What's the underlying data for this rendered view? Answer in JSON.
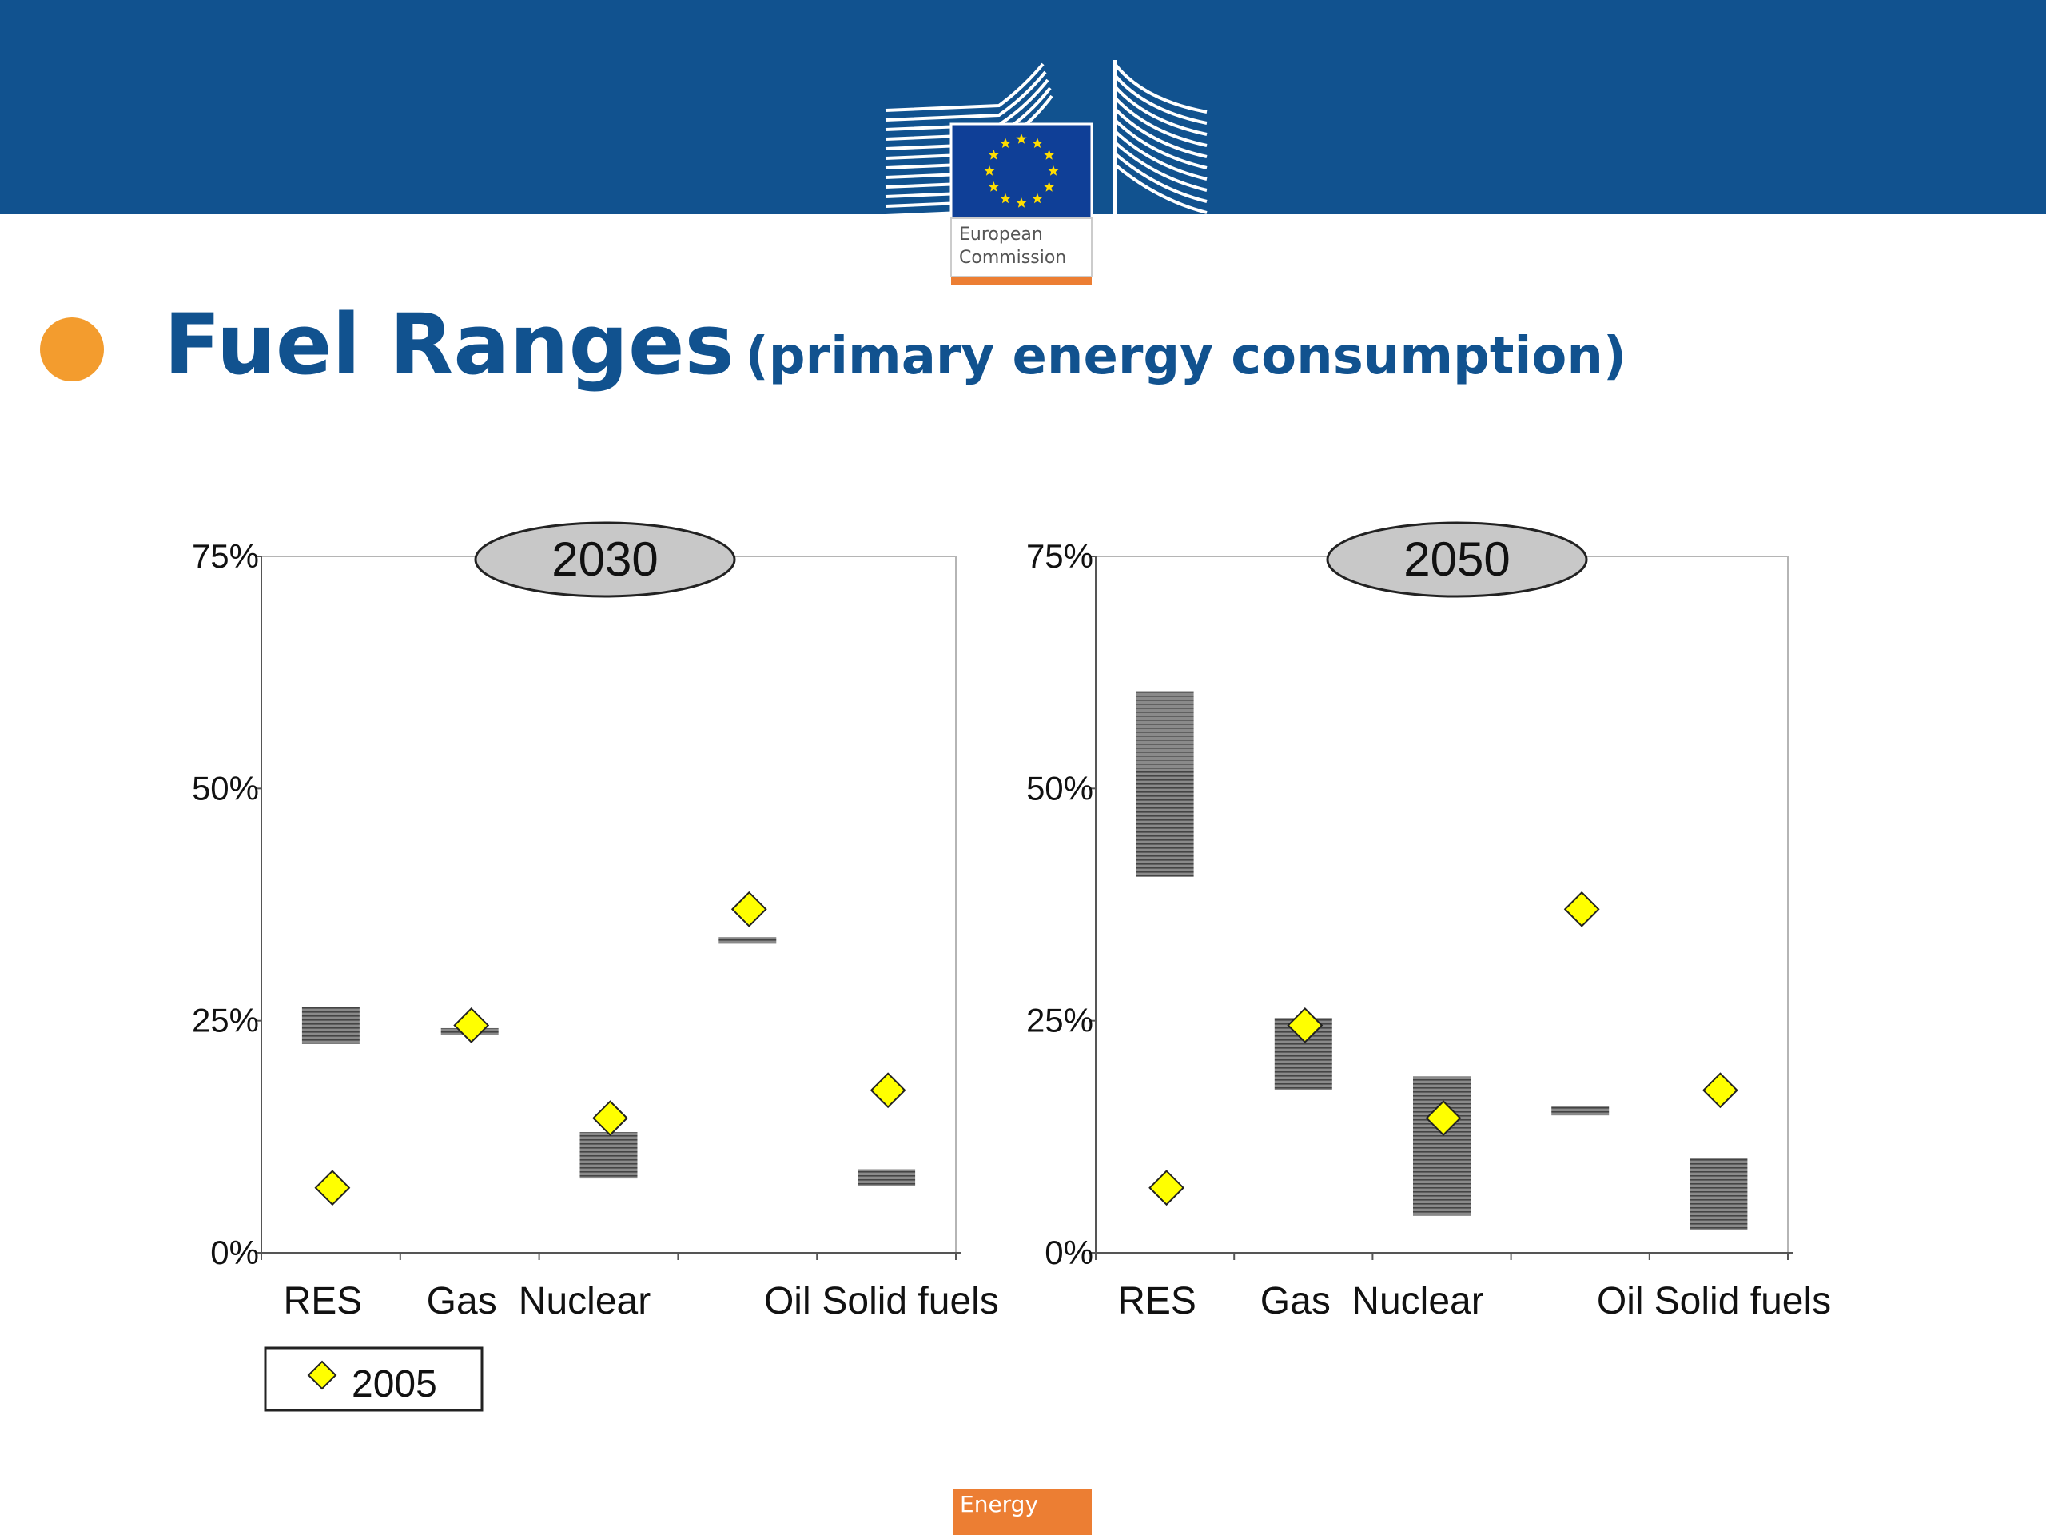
{
  "header": {
    "logo_line1": "European",
    "logo_line2": "Commission"
  },
  "title": {
    "main": "Fuel Ranges",
    "sub": "(primary energy consumption)"
  },
  "footer": {
    "tab_label": "Energy"
  },
  "colors": {
    "banner": "#11528f",
    "title": "#11528f",
    "bullet": "#f39c2e",
    "footer_tab": "#ec7e33",
    "marker_fill": "#ffff00",
    "range_fill": "#777777",
    "year_oval": "#c8c8c8"
  },
  "chart_data": [
    {
      "type": "range",
      "title": "2030",
      "categories": [
        "RES",
        "Gas",
        "Nuclear",
        "Oil",
        "Solid fuels"
      ],
      "ylim": [
        0,
        75
      ],
      "yticks": [
        "0%",
        "25%",
        "50%",
        "75%"
      ],
      "series": [
        {
          "name": "2005",
          "kind": "marker",
          "values": [
            7,
            24.5,
            14.5,
            37,
            17.5
          ]
        },
        {
          "kind": "range",
          "low": [
            22.5,
            23.5,
            8,
            33.3,
            7.2
          ],
          "high": [
            26.5,
            24.2,
            13,
            34,
            9
          ]
        }
      ],
      "legend": {
        "position": "bottom-left",
        "entries": [
          "2005"
        ]
      }
    },
    {
      "type": "range",
      "title": "2050",
      "categories": [
        "RES",
        "Gas",
        "Nuclear",
        "Oil",
        "Solid fuels"
      ],
      "ylim": [
        0,
        75
      ],
      "yticks": [
        "0%",
        "25%",
        "50%",
        "75%"
      ],
      "series": [
        {
          "name": "2005",
          "kind": "marker",
          "values": [
            7,
            24.5,
            14.5,
            37,
            17.5
          ]
        },
        {
          "kind": "range",
          "low": [
            40.5,
            17.5,
            4,
            14.8,
            2.5
          ],
          "high": [
            60.5,
            25.3,
            19,
            15.8,
            10.2
          ]
        }
      ]
    }
  ]
}
